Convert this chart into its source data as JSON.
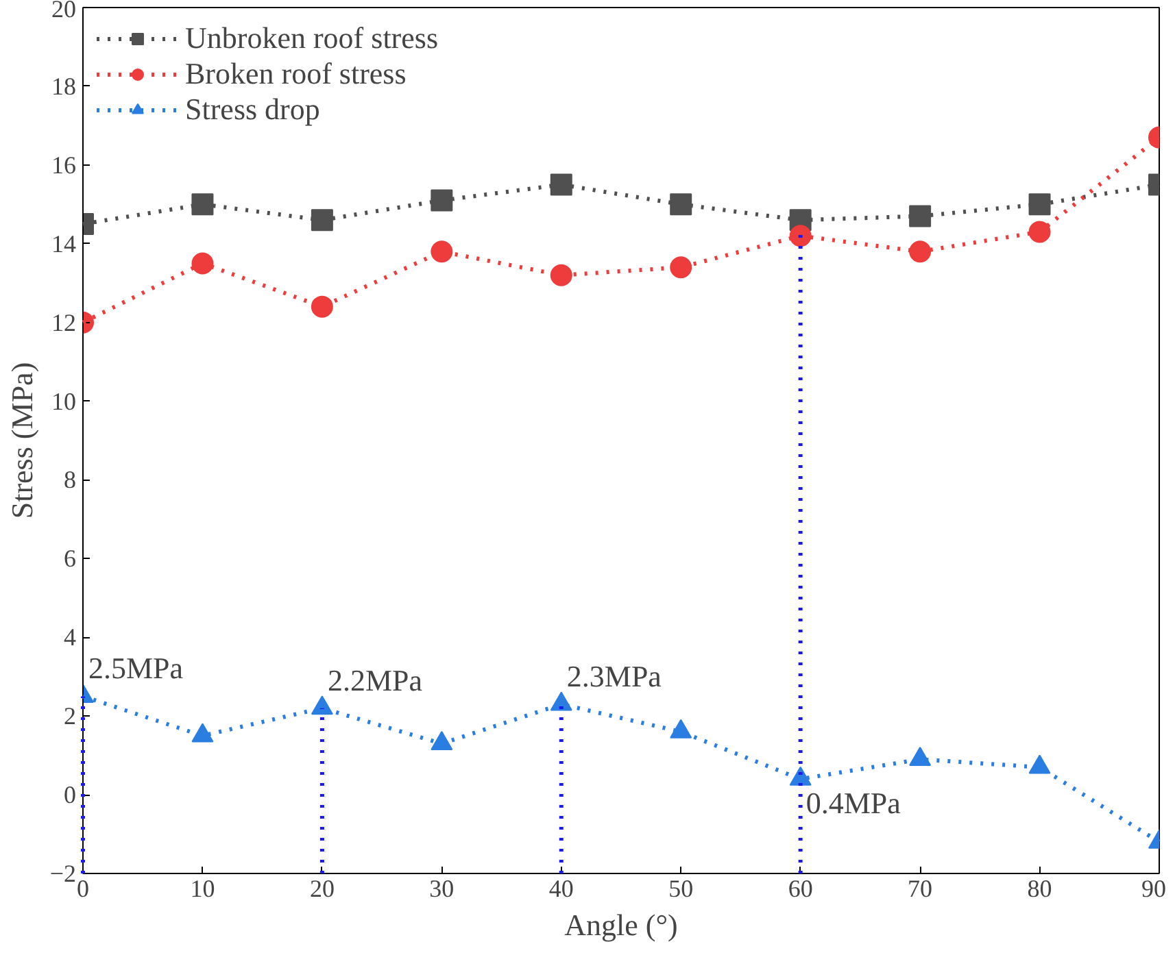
{
  "chart_data": {
    "type": "line",
    "xlabel": "Angle (°)",
    "ylabel": "Stress (MPa)",
    "x": [
      0,
      10,
      20,
      30,
      40,
      50,
      60,
      70,
      80,
      90
    ],
    "xlim": [
      0,
      90
    ],
    "xticks": [
      0,
      10,
      20,
      30,
      40,
      50,
      60,
      70,
      80,
      90
    ],
    "ylim": [
      -2,
      20
    ],
    "yticks": [
      -2,
      0,
      2,
      4,
      6,
      8,
      10,
      12,
      14,
      16,
      18,
      20
    ],
    "grid": false,
    "legend": "top left",
    "line_style": "dotted",
    "series": [
      {
        "name": "Unbroken roof stress",
        "color": "#505050",
        "marker": "square",
        "values": [
          14.5,
          15.0,
          14.6,
          15.1,
          15.5,
          15.0,
          14.6,
          14.7,
          15.0,
          15.5
        ]
      },
      {
        "name": "Broken roof stress",
        "color": "#ee3b3b",
        "marker": "circle",
        "values": [
          12.0,
          13.5,
          12.4,
          13.8,
          13.2,
          13.4,
          14.2,
          13.8,
          14.3,
          16.7
        ]
      },
      {
        "name": "Stress drop",
        "color": "#2a7de1",
        "marker": "triangle",
        "values": [
          2.5,
          1.5,
          2.2,
          1.3,
          2.3,
          1.6,
          0.4,
          0.9,
          0.7,
          -1.2
        ]
      },
      {
        "color": "#1a1aee",
        "marker": "none",
        "x": [
          0,
          0
        ],
        "values": [
          -2,
          2.5
        ]
      },
      {
        "color": "#1a1aee",
        "marker": "none",
        "x": [
          20,
          20
        ],
        "values": [
          -2,
          2.2
        ]
      },
      {
        "color": "#1a1aee",
        "marker": "none",
        "x": [
          40,
          40
        ],
        "values": [
          -2,
          2.3
        ]
      },
      {
        "color": "#1a1aee",
        "marker": "none",
        "x": [
          60,
          60
        ],
        "values": [
          -2,
          14.4
        ]
      }
    ],
    "annotations": [
      {
        "text": "2.5MPa",
        "x": 0,
        "y": 2.5
      },
      {
        "text": "2.2MPa",
        "x": 20,
        "y": 2.2
      },
      {
        "text": "2.3MPa",
        "x": 40,
        "y": 2.3
      },
      {
        "text": "0.4MPa",
        "x": 60,
        "y": 0.4
      }
    ]
  }
}
